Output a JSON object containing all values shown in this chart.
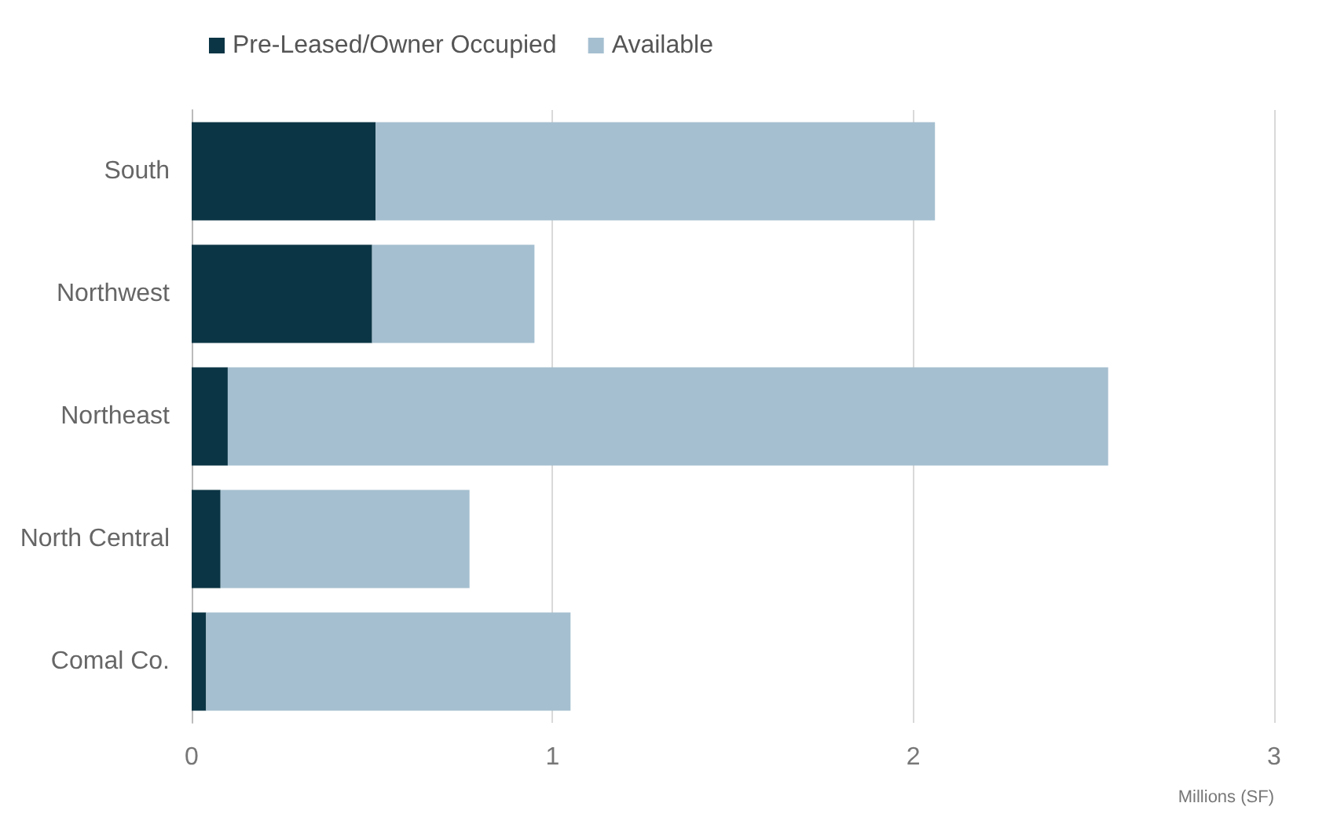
{
  "chart_data": {
    "type": "bar",
    "orientation": "horizontal",
    "stacked": true,
    "xlabel": "Millions (SF)",
    "categories": [
      "South",
      "Northwest",
      "Northeast",
      "North Central",
      "Comal Co."
    ],
    "series": [
      {
        "name": "Pre-Leased/Owner Occupied",
        "color": "#0b3545",
        "values": [
          0.51,
          0.5,
          0.1,
          0.08,
          0.04
        ]
      },
      {
        "name": "Available",
        "color": "#a5bfd0",
        "values": [
          1.55,
          0.45,
          2.44,
          0.69,
          1.01
        ]
      }
    ],
    "xlim": [
      0,
      3
    ],
    "xticks": [
      0,
      1,
      2,
      3
    ],
    "grid": "x",
    "legend": "top left"
  }
}
